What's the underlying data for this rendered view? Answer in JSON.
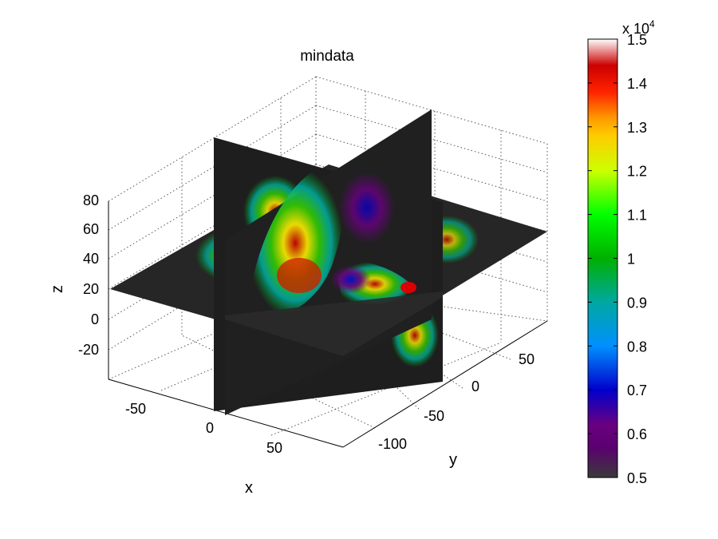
{
  "chart_data": {
    "type": "heatmap",
    "title": "mindata",
    "xlabel": "x",
    "ylabel": "y",
    "zlabel": "z",
    "x_ticks": [
      "-50",
      "0",
      "50"
    ],
    "y_ticks": [
      "-100",
      "-50",
      "0",
      "50"
    ],
    "z_ticks": [
      "-20",
      "0",
      "20",
      "40",
      "60",
      "80"
    ],
    "slice_planes": [
      "x",
      "y",
      "z"
    ],
    "colorbar": {
      "exponent_label": "x 10",
      "exponent_power": "4",
      "min": 0.5,
      "max": 1.5,
      "ticks": [
        "0.5",
        "0.6",
        "0.7",
        "0.8",
        "0.9",
        "1",
        "1.1",
        "1.2",
        "1.3",
        "1.4",
        "1.5"
      ],
      "colormap": [
        "#3a3a3a",
        "#6a0080",
        "#0000cc",
        "#0090ff",
        "#00a8a0",
        "#00c800",
        "#66e000",
        "#ffee00",
        "#ff9900",
        "#ff0000",
        "#cc0000",
        "#ffffff"
      ]
    },
    "grid": true
  }
}
